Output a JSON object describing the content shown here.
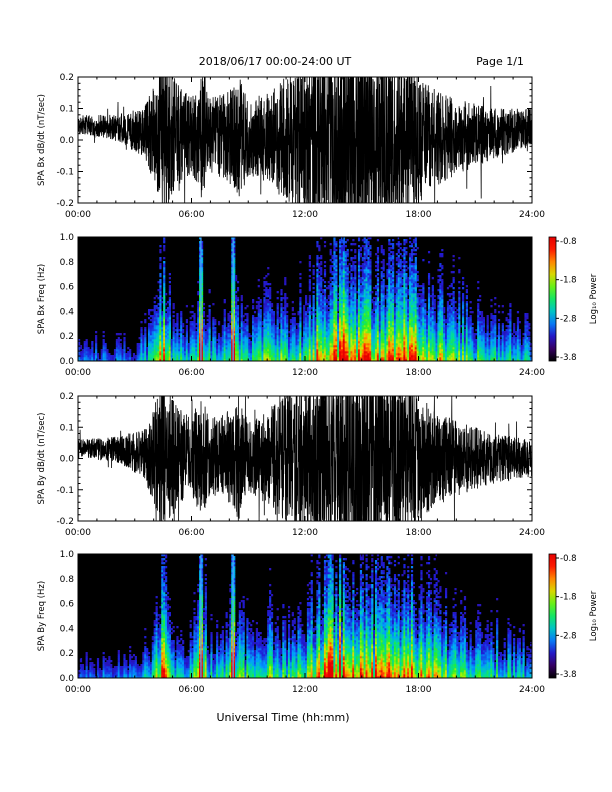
{
  "header": {
    "title": "2018/06/17  00:00-24:00 UT",
    "page": "Page 1/1"
  },
  "footer": {
    "xlabel": "Universal Time (hh:mm)"
  },
  "chart_data": [
    {
      "type": "line",
      "ylabel": "SPA Bx dB/dt (nT/sec)",
      "xlim": [
        "00:00",
        "24:00"
      ],
      "xticks": [
        "00:00",
        "06:00",
        "12:00",
        "18:00",
        "24:00"
      ],
      "ylim": [
        -0.2,
        0.2
      ],
      "yticks": [
        "-0.2",
        "-0.1",
        "0.0",
        "0.1",
        "0.2"
      ],
      "series": [
        {
          "color": "#000000",
          "amplitude_envelope": {
            "hours": [
              0,
              2,
              3.5,
              4,
              4.5,
              5,
              5.5,
              6,
              6.5,
              7,
              8,
              8.5,
              9,
              10,
              11,
              12,
              13,
              14,
              15,
              16,
              17,
              17.5,
              18,
              19,
              20,
              21,
              22,
              23,
              24
            ],
            "values": [
              0.03,
              0.04,
              0.08,
              0.15,
              0.25,
              0.2,
              0.15,
              0.12,
              0.2,
              0.12,
              0.15,
              0.2,
              0.12,
              0.15,
              0.2,
              0.25,
              0.3,
              0.35,
              0.35,
              0.3,
              0.25,
              0.25,
              0.2,
              0.15,
              0.12,
              0.1,
              0.08,
              0.07,
              0.06
            ]
          },
          "baseline": {
            "hours": [
              0,
              2,
              4,
              12,
              18,
              22,
              24
            ],
            "values": [
              0.05,
              0.04,
              0.02,
              0.0,
              0.0,
              0.02,
              0.04
            ]
          }
        }
      ]
    },
    {
      "type": "heatmap",
      "ylabel": "SPA Bx Freq (Hz)",
      "xlim": [
        "00:00",
        "24:00"
      ],
      "xticks": [
        "00:00",
        "06:00",
        "12:00",
        "18:00",
        "24:00"
      ],
      "ylim": [
        0.0,
        1.0
      ],
      "yticks": [
        "0.0",
        "0.2",
        "0.4",
        "0.6",
        "0.8",
        "1.0"
      ],
      "colorbar": {
        "label": "Log₁₀ Power",
        "range": [
          -3.8,
          -0.8
        ],
        "ticks": [
          "-0.8",
          "-1.8",
          "-2.8",
          "-3.8"
        ]
      },
      "activity": {
        "hours": [
          0,
          3,
          4,
          4.5,
          5,
          6,
          6.5,
          7,
          8,
          8.2,
          9,
          10,
          11,
          12,
          13,
          13.5,
          14,
          15,
          16,
          17,
          17.5,
          18,
          20,
          22,
          24
        ],
        "values": [
          0.3,
          0.3,
          0.5,
          0.85,
          0.5,
          0.45,
          0.8,
          0.45,
          0.5,
          0.7,
          0.5,
          0.6,
          0.55,
          0.6,
          0.85,
          1.0,
          0.95,
          0.9,
          0.8,
          0.9,
          0.95,
          0.75,
          0.6,
          0.5,
          0.4
        ]
      },
      "vertical_lines_hours": [
        6.5,
        8.2
      ]
    },
    {
      "type": "line",
      "ylabel": "SPA By dB/dt (nT/sec)",
      "xlim": [
        "00:00",
        "24:00"
      ],
      "xticks": [
        "00:00",
        "06:00",
        "12:00",
        "18:00",
        "24:00"
      ],
      "ylim": [
        -0.2,
        0.2
      ],
      "yticks": [
        "-0.2",
        "-0.1",
        "0.0",
        "0.1",
        "0.2"
      ],
      "series": [
        {
          "color": "#000000",
          "amplitude_envelope": {
            "hours": [
              0,
              2,
              3.5,
              4,
              4.5,
              5,
              5.5,
              6,
              6.5,
              7,
              8,
              8.5,
              9,
              10,
              11,
              12,
              13,
              14,
              15,
              16,
              17,
              17.5,
              18,
              19,
              20,
              21,
              22,
              23,
              24
            ],
            "values": [
              0.03,
              0.04,
              0.08,
              0.15,
              0.25,
              0.2,
              0.15,
              0.12,
              0.2,
              0.12,
              0.15,
              0.2,
              0.12,
              0.15,
              0.22,
              0.25,
              0.3,
              0.35,
              0.35,
              0.3,
              0.25,
              0.25,
              0.2,
              0.15,
              0.12,
              0.1,
              0.08,
              0.07,
              0.06
            ]
          },
          "baseline": {
            "hours": [
              0,
              2,
              4,
              12,
              18,
              22,
              24
            ],
            "values": [
              0.03,
              0.03,
              0.01,
              0.0,
              0.0,
              0.0,
              0.0
            ]
          }
        }
      ]
    },
    {
      "type": "heatmap",
      "ylabel": "SPA By Freq (Hz)",
      "xlim": [
        "00:00",
        "24:00"
      ],
      "xticks": [
        "00:00",
        "06:00",
        "12:00",
        "18:00",
        "24:00"
      ],
      "ylim": [
        0.0,
        1.0
      ],
      "yticks": [
        "0.0",
        "0.2",
        "0.4",
        "0.6",
        "0.8",
        "1.0"
      ],
      "colorbar": {
        "label": "Log₁₀ Power",
        "range": [
          -3.8,
          -0.8
        ],
        "ticks": [
          "-0.8",
          "-1.8",
          "-2.8",
          "-3.8"
        ]
      },
      "activity": {
        "hours": [
          0,
          3,
          4,
          4.5,
          5,
          6,
          6.5,
          7,
          8,
          8.2,
          9,
          10,
          11,
          12,
          13,
          13.5,
          14,
          15,
          16,
          17,
          17.5,
          18,
          20,
          22,
          24
        ],
        "values": [
          0.3,
          0.3,
          0.5,
          0.85,
          0.5,
          0.45,
          0.8,
          0.45,
          0.5,
          0.7,
          0.5,
          0.6,
          0.55,
          0.6,
          0.85,
          1.0,
          0.95,
          0.9,
          0.8,
          0.9,
          0.95,
          0.75,
          0.6,
          0.5,
          0.4
        ]
      },
      "vertical_lines_hours": [
        6.5,
        8.2
      ]
    }
  ]
}
